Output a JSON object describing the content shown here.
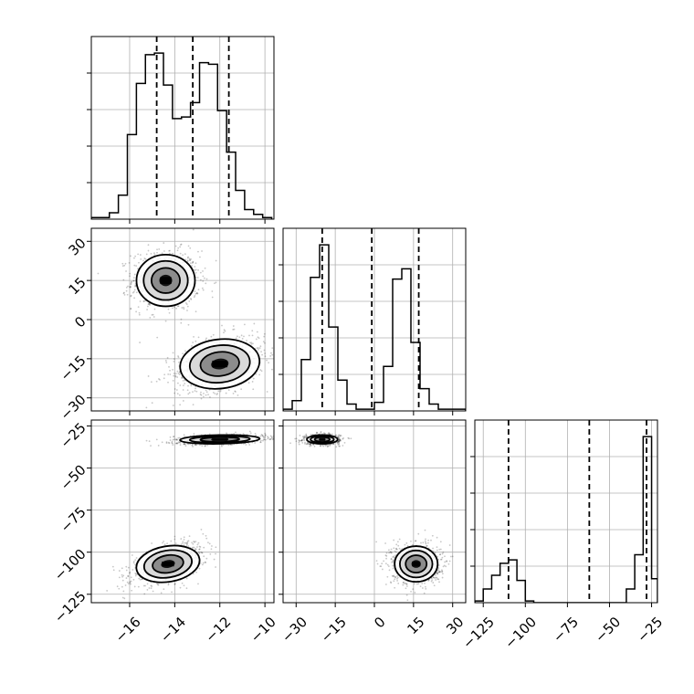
{
  "chart_data": {
    "type": "corner",
    "parameters": [
      "",
      "",
      ""
    ],
    "grid": true,
    "axes": [
      {
        "range": [
          -17.7,
          -9.6
        ],
        "ticks": [
          -16,
          -14,
          -12,
          -10
        ],
        "tick_labels": [
          "−16",
          "−14",
          "−12",
          "−10"
        ]
      },
      {
        "range": [
          -35,
          35
        ],
        "ticks": [
          -30,
          -15,
          0,
          15,
          30
        ],
        "tick_labels": [
          "−30",
          "−15",
          "0",
          "15",
          "30"
        ]
      },
      {
        "range": [
          -130,
          -21.5
        ],
        "ticks": [
          -125,
          -100,
          -75,
          -50,
          -25
        ],
        "tick_labels": [
          "−125",
          "−100",
          "−75",
          "−50",
          "−25"
        ]
      }
    ],
    "marginals": [
      {
        "quantiles": [
          -14.8,
          -13.2,
          -11.6
        ],
        "edges": [
          -17.7,
          -17.3,
          -16.9,
          -16.5,
          -16.1,
          -15.7,
          -15.3,
          -14.9,
          -14.5,
          -14.1,
          -13.7,
          -13.3,
          -12.9,
          -12.5,
          -12.1,
          -11.7,
          -11.3,
          -10.9,
          -10.5,
          -10.1,
          -9.7
        ],
        "counts": [
          0.01,
          0.01,
          0.04,
          0.15,
          0.53,
          0.85,
          1.03,
          1.04,
          0.84,
          0.63,
          0.64,
          0.73,
          0.98,
          0.97,
          0.68,
          0.42,
          0.18,
          0.06,
          0.03,
          0.01
        ]
      },
      {
        "quantiles": [
          -20,
          -1,
          17
        ],
        "edges": [
          -35,
          -31.5,
          -28,
          -24.5,
          -21,
          -17.5,
          -14,
          -10.5,
          -7,
          -3.5,
          0,
          3.5,
          7,
          10.5,
          14,
          17.5,
          21,
          24.5,
          28,
          31.5,
          35
        ],
        "counts": [
          0.01,
          0.06,
          0.3,
          0.78,
          0.97,
          0.49,
          0.18,
          0.04,
          0.01,
          0.01,
          0.05,
          0.26,
          0.77,
          0.83,
          0.4,
          0.13,
          0.04,
          0.01,
          0.01,
          0.01
        ]
      },
      {
        "quantiles": [
          -110,
          -62,
          -28
        ],
        "edges": [
          -130,
          -125,
          -120,
          -115,
          -110,
          -105,
          -100,
          -95,
          -90,
          -85,
          -80,
          -75,
          -70,
          -65,
          -60,
          -55,
          -50,
          -45,
          -40,
          -35,
          -30,
          -25,
          -21.5
        ],
        "counts": [
          0.01,
          0.08,
          0.16,
          0.23,
          0.25,
          0.13,
          0.01,
          0,
          0,
          0,
          0,
          0,
          0,
          0,
          0,
          0,
          0,
          0,
          0.08,
          0.28,
          0.97,
          0.14
        ]
      }
    ],
    "pairs": [
      {
        "row": 1,
        "col": 0,
        "modes": [
          {
            "center": [
              -14.4,
              15
            ],
            "spread": [
              0.55,
              4.2
            ],
            "corr": 0.0,
            "weight": 0.5
          },
          {
            "center": [
              -12.0,
              -17
            ],
            "spread": [
              0.75,
              4.0
            ],
            "corr": 0.35,
            "weight": 0.5
          }
        ]
      },
      {
        "row": 2,
        "col": 0,
        "modes": [
          {
            "center": [
              -12.0,
              -33
            ],
            "spread": [
              0.75,
              1.1
            ],
            "corr": 0.3,
            "weight": 0.5
          },
          {
            "center": [
              -14.3,
              -107
            ],
            "spread": [
              0.6,
              4.5
            ],
            "corr": 0.55,
            "weight": 0.5
          }
        ]
      },
      {
        "row": 2,
        "col": 1,
        "modes": [
          {
            "center": [
              -20,
              -33
            ],
            "spread": [
              2.5,
              1.1
            ],
            "corr": 0.0,
            "weight": 0.5
          },
          {
            "center": [
              16,
              -107
            ],
            "spread": [
              3.5,
              4.5
            ],
            "corr": 0.0,
            "weight": 0.5
          }
        ]
      }
    ]
  }
}
